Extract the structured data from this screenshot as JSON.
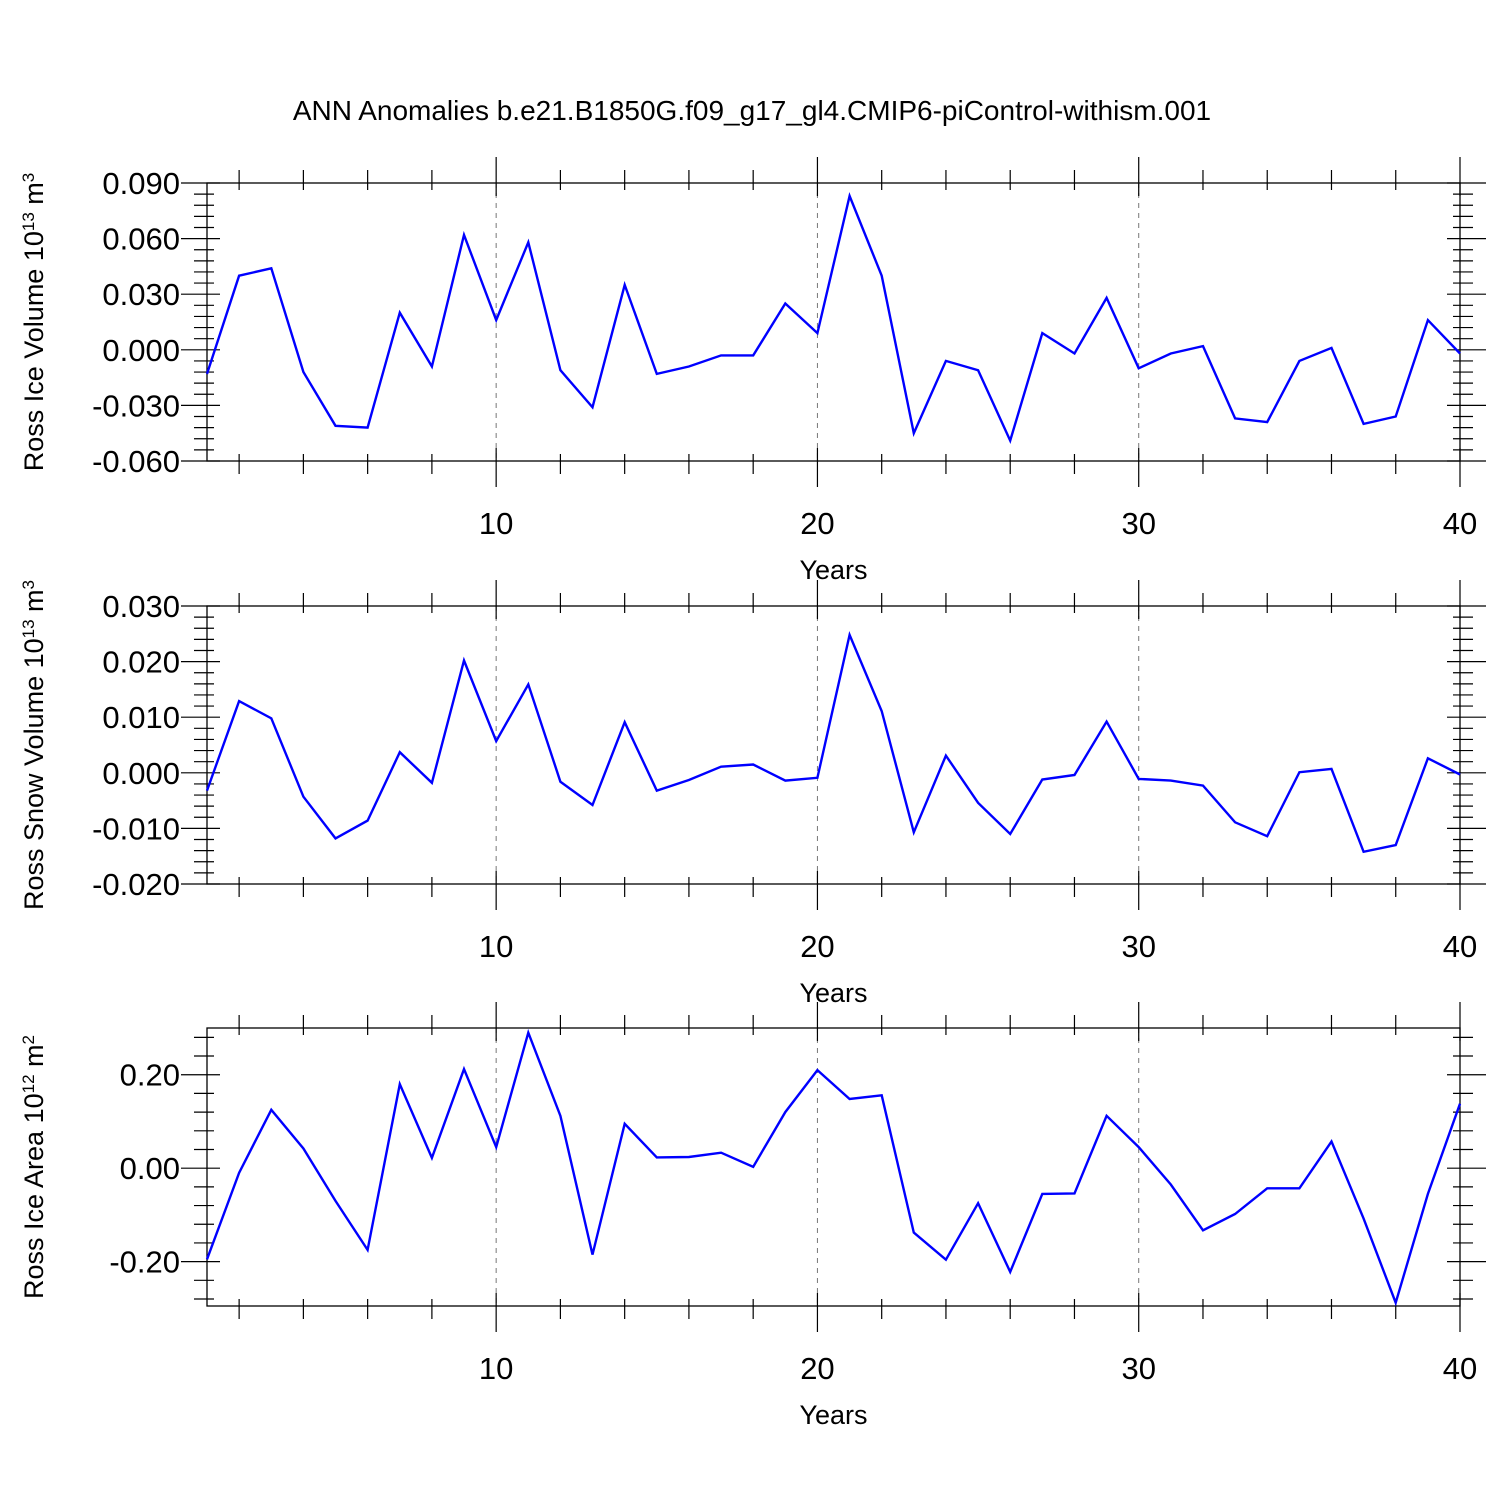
{
  "title": "ANN Anomalies b.e21.B1850G.f09_g17_gl4.CMIP6-piControl-withism.001",
  "series_color": "#0000ff",
  "chart_data": [
    {
      "type": "line",
      "ylabel": "Ross Ice Volume 10",
      "ylabel_exp": "13",
      "ylabel_unit": "m",
      "ylabel_unit_exp": "3",
      "xlabel": "Years",
      "xlim": [
        1,
        40
      ],
      "ylim": [
        -0.06,
        0.09
      ],
      "yticks": [
        -0.06,
        -0.03,
        0.0,
        0.03,
        0.06,
        0.09
      ],
      "ytick_labels": [
        "-0.060",
        "-0.030",
        "0.000",
        "0.030",
        "0.060",
        "0.090"
      ],
      "xticks": [
        10,
        20,
        30,
        40
      ],
      "xtick_labels": [
        "10",
        "20",
        "30",
        "40"
      ],
      "grid": "vertical dashed at major x ticks",
      "x": [
        1,
        2,
        3,
        4,
        5,
        6,
        7,
        8,
        9,
        10,
        11,
        12,
        13,
        14,
        15,
        16,
        17,
        18,
        19,
        20,
        21,
        22,
        23,
        24,
        25,
        26,
        27,
        28,
        29,
        30,
        31,
        32,
        33,
        34,
        35,
        36,
        37,
        38,
        39,
        40
      ],
      "values": [
        -0.013,
        0.04,
        0.044,
        -0.012,
        -0.041,
        -0.042,
        0.02,
        -0.009,
        0.062,
        0.016,
        0.058,
        -0.011,
        -0.031,
        0.035,
        -0.013,
        -0.009,
        -0.003,
        -0.003,
        0.025,
        0.009,
        0.083,
        0.04,
        -0.045,
        -0.006,
        -0.011,
        -0.049,
        0.009,
        -0.002,
        0.028,
        -0.01,
        -0.002,
        0.002,
        -0.037,
        -0.039,
        -0.006,
        0.001,
        -0.04,
        -0.036,
        0.016,
        -0.002
      ]
    },
    {
      "type": "line",
      "ylabel": "Ross Snow Volume 10",
      "ylabel_exp": "13",
      "ylabel_unit": "m",
      "ylabel_unit_exp": "3",
      "xlabel": "Years",
      "xlim": [
        1,
        40
      ],
      "ylim": [
        -0.02,
        0.03
      ],
      "yticks": [
        -0.02,
        -0.01,
        0.0,
        0.01,
        0.02,
        0.03
      ],
      "ytick_labels": [
        "-0.020",
        "-0.010",
        "0.000",
        "0.010",
        "0.020",
        "0.030"
      ],
      "xticks": [
        10,
        20,
        30,
        40
      ],
      "xtick_labels": [
        "10",
        "20",
        "30",
        "40"
      ],
      "grid": "vertical dashed at major x ticks",
      "x": [
        1,
        2,
        3,
        4,
        5,
        6,
        7,
        8,
        9,
        10,
        11,
        12,
        13,
        14,
        15,
        16,
        17,
        18,
        19,
        20,
        21,
        22,
        23,
        24,
        25,
        26,
        27,
        28,
        29,
        30,
        31,
        32,
        33,
        34,
        35,
        36,
        37,
        38,
        39,
        40
      ],
      "values": [
        -0.0032,
        0.0129,
        0.0098,
        -0.0043,
        -0.0118,
        -0.0086,
        0.0037,
        -0.0018,
        0.0202,
        0.0057,
        0.0159,
        -0.0016,
        -0.0058,
        0.0091,
        -0.0032,
        -0.0013,
        0.0011,
        0.0015,
        -0.0014,
        -0.0009,
        0.0248,
        0.0111,
        -0.0107,
        0.0031,
        -0.0054,
        -0.011,
        -0.0012,
        -0.0004,
        0.0092,
        -0.0011,
        -0.0014,
        -0.0023,
        -0.0089,
        -0.0114,
        0.0001,
        0.0007,
        -0.0142,
        -0.013,
        0.0026,
        -0.0003
      ]
    },
    {
      "type": "line",
      "ylabel": "Ross Ice Area 10",
      "ylabel_exp": "12",
      "ylabel_unit": "m",
      "ylabel_unit_exp": "2",
      "xlabel": "Years",
      "xlim": [
        1,
        40
      ],
      "ylim": [
        -0.295,
        0.3
      ],
      "yticks": [
        -0.2,
        0.0,
        0.2
      ],
      "ytick_labels": [
        "-0.20",
        "0.00",
        "0.20"
      ],
      "xticks": [
        10,
        20,
        30,
        40
      ],
      "xtick_labels": [
        "10",
        "20",
        "30",
        "40"
      ],
      "grid": "vertical dashed at major x ticks",
      "x": [
        1,
        2,
        3,
        4,
        5,
        6,
        7,
        8,
        9,
        10,
        11,
        12,
        13,
        14,
        15,
        16,
        17,
        18,
        19,
        20,
        21,
        22,
        23,
        24,
        25,
        26,
        27,
        28,
        29,
        30,
        31,
        32,
        33,
        34,
        35,
        36,
        37,
        38,
        39,
        40
      ],
      "values": [
        -0.195,
        -0.01,
        0.125,
        0.042,
        -0.07,
        -0.175,
        0.18,
        0.022,
        0.212,
        0.045,
        0.29,
        0.112,
        -0.185,
        0.095,
        0.023,
        0.024,
        0.033,
        0.003,
        0.12,
        0.21,
        0.148,
        0.156,
        -0.138,
        -0.196,
        -0.075,
        -0.222,
        -0.055,
        -0.054,
        0.112,
        0.045,
        -0.035,
        -0.133,
        -0.098,
        -0.043,
        -0.043,
        0.057,
        -0.108,
        -0.288,
        -0.055,
        0.138
      ]
    }
  ]
}
